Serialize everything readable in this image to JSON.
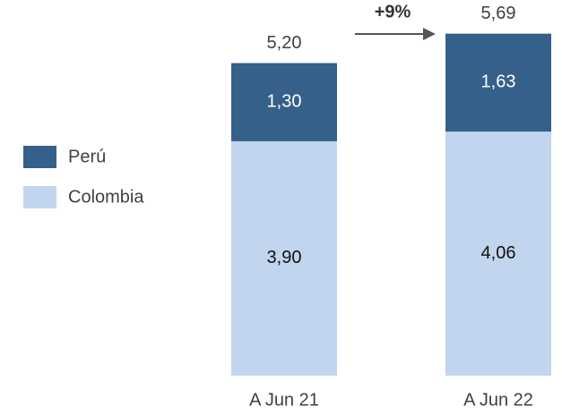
{
  "chart_data": {
    "type": "stacked_bar",
    "categories": [
      "A Jun 21",
      "A Jun 22"
    ],
    "series": [
      {
        "name": "Colombia",
        "color": "#c1d5ee",
        "values": [
          3.9,
          4.06
        ],
        "value_labels": [
          "3,90",
          "4,06"
        ]
      },
      {
        "name": "Perú",
        "color": "#35608a",
        "values": [
          1.3,
          1.63
        ],
        "value_labels": [
          "1,30",
          "1,63"
        ]
      }
    ],
    "totals": [
      5.2,
      5.69
    ],
    "total_labels": [
      "5,20",
      "5,69"
    ],
    "annotation": "+9%",
    "legend": "left"
  }
}
